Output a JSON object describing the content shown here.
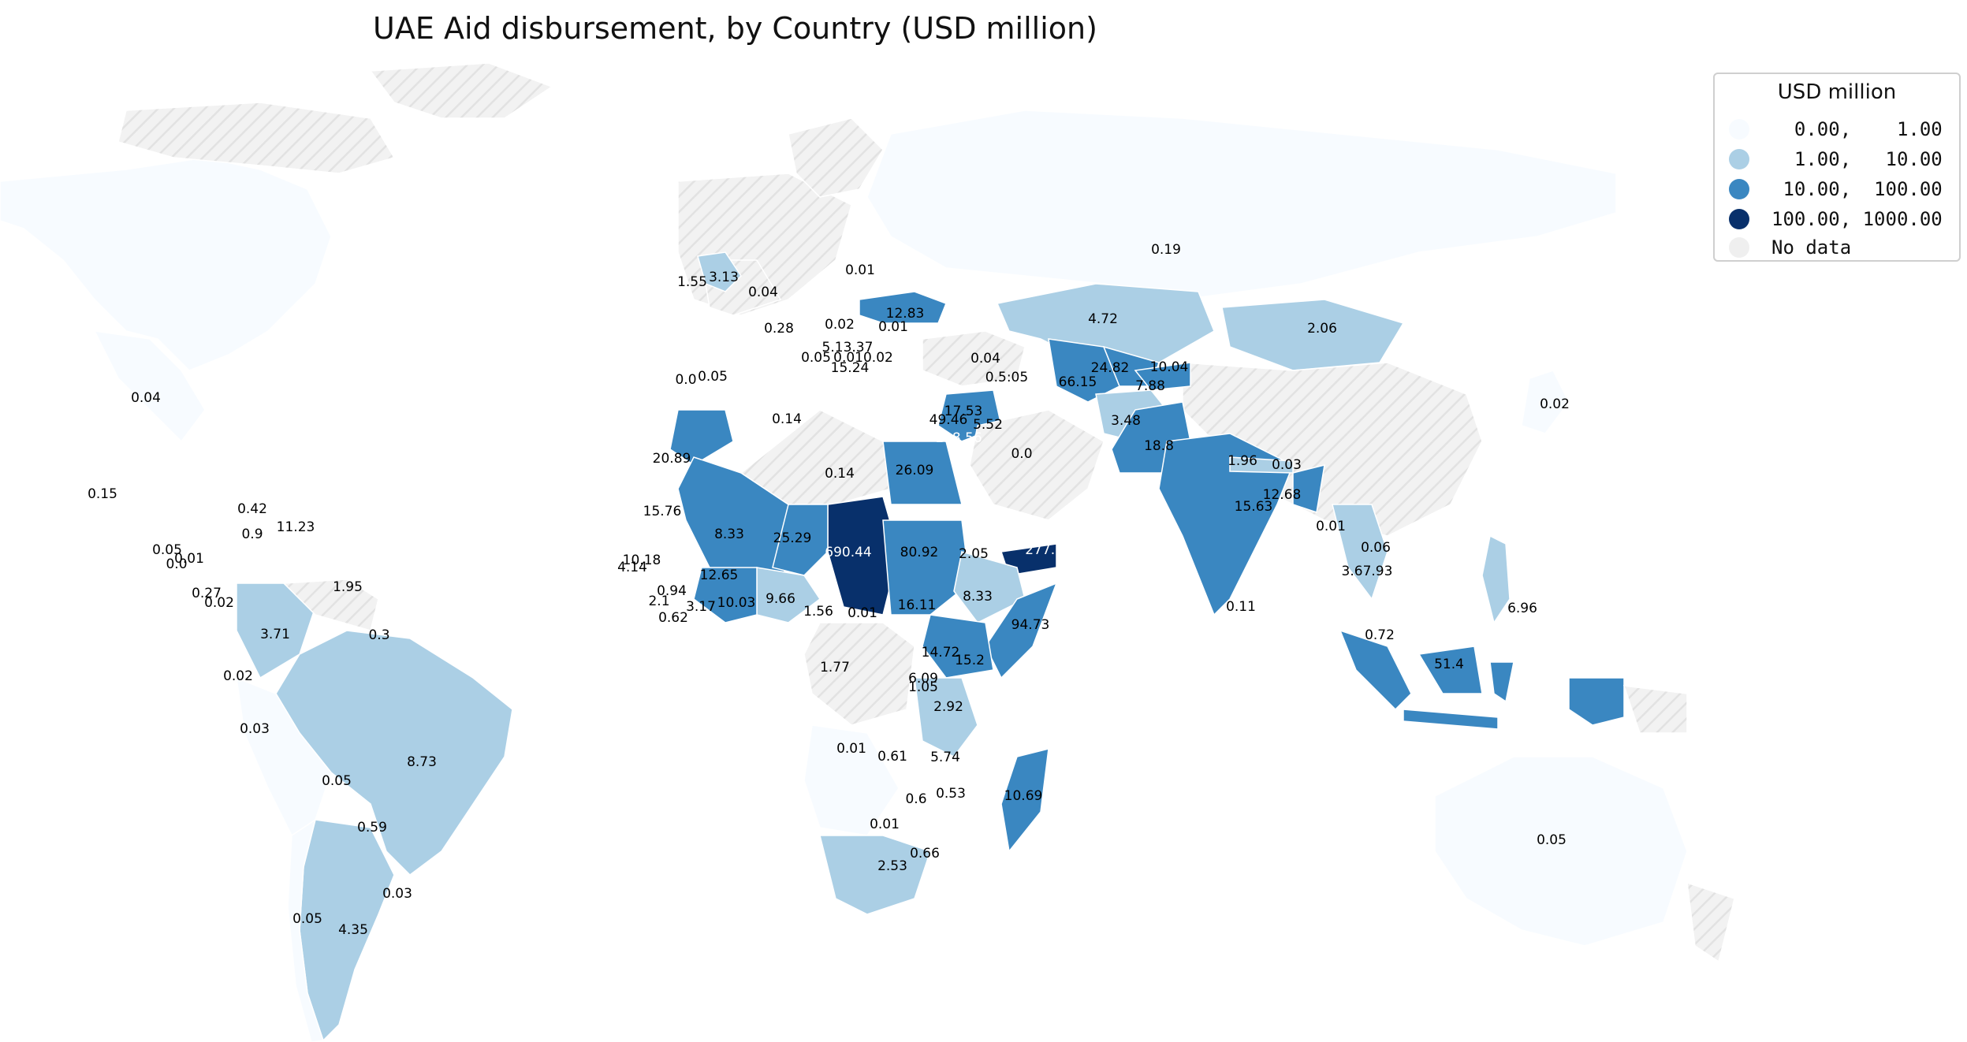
{
  "map": {
    "title": "UAE Aid disbursement, by Country (USD million)",
    "legend": {
      "title": "USD million",
      "items": [
        {
          "label": "  0.00,    1.00",
          "color": "#f7fbff"
        },
        {
          "label": "  1.00,   10.00",
          "color": "#abcfe5"
        },
        {
          "label": " 10.00,  100.00",
          "color": "#3a87c1"
        },
        {
          "label": "100.00, 1000.00",
          "color": "#08306b"
        },
        {
          "label": "No data",
          "color": "#efefef"
        }
      ]
    },
    "colors": {
      "bin0": "#f7fbff",
      "bin1": "#abcfe5",
      "bin2": "#3a87c1",
      "bin3": "#08306b",
      "nodata": "#efefef",
      "hatch": "#e0e0e0"
    },
    "value_labels": [
      {
        "text": "0.04",
        "bin": 0
      },
      {
        "text": "0.15",
        "bin": 0
      },
      {
        "text": "0.42",
        "bin": 0
      },
      {
        "text": "0.9",
        "bin": 0
      },
      {
        "text": "11.23",
        "bin": 2
      },
      {
        "text": "0.05",
        "bin": 0
      },
      {
        "text": "0.01",
        "bin": 0
      },
      {
        "text": "0.0",
        "bin": 0
      },
      {
        "text": "0.27",
        "bin": 0
      },
      {
        "text": "0.02",
        "bin": 0
      },
      {
        "text": "1.95",
        "bin": 1
      },
      {
        "text": "3.71",
        "bin": 1
      },
      {
        "text": "0.3",
        "bin": 0
      },
      {
        "text": "0.02",
        "bin": 0
      },
      {
        "text": "0.03",
        "bin": 0
      },
      {
        "text": "8.73",
        "bin": 1
      },
      {
        "text": "0.05",
        "bin": 0
      },
      {
        "text": "0.59",
        "bin": 0
      },
      {
        "text": "0.03",
        "bin": 0
      },
      {
        "text": "0.05",
        "bin": 0
      },
      {
        "text": "4.35",
        "bin": 1
      },
      {
        "text": "1.55",
        "bin": 1
      },
      {
        "text": "3.13",
        "bin": 1
      },
      {
        "text": "0.04",
        "bin": 0
      },
      {
        "text": "0.01",
        "bin": 0
      },
      {
        "text": "0.28",
        "bin": 0
      },
      {
        "text": "0.02",
        "bin": 0
      },
      {
        "text": "12.83",
        "bin": 2
      },
      {
        "text": "0.01",
        "bin": 0
      },
      {
        "text": "5.13.37",
        "bin": 2
      },
      {
        "text": "0.05",
        "bin": 0
      },
      {
        "text": "0.010.02",
        "bin": 0
      },
      {
        "text": "15.24",
        "bin": 2
      },
      {
        "text": "0.0",
        "bin": 0
      },
      {
        "text": "0.05",
        "bin": 0
      },
      {
        "text": "0.14",
        "bin": 0
      },
      {
        "text": "20.89",
        "bin": 2
      },
      {
        "text": "0.14",
        "bin": 0
      },
      {
        "text": "15.76",
        "bin": 2
      },
      {
        "text": "8.33",
        "bin": 1
      },
      {
        "text": "25.29",
        "bin": 2
      },
      {
        "text": "690.44",
        "bin": 3
      },
      {
        "text": "10.18",
        "bin": 2
      },
      {
        "text": "4.14",
        "bin": 1
      },
      {
        "text": "12.65",
        "bin": 2
      },
      {
        "text": "0.94",
        "bin": 0
      },
      {
        "text": "2.1",
        "bin": 1
      },
      {
        "text": "0.62",
        "bin": 0
      },
      {
        "text": "3.17",
        "bin": 1
      },
      {
        "text": "10.03",
        "bin": 2
      },
      {
        "text": "9.66",
        "bin": 1
      },
      {
        "text": "1.56",
        "bin": 1
      },
      {
        "text": "0.01",
        "bin": 0
      },
      {
        "text": "1.77",
        "bin": 1
      },
      {
        "text": "26.09",
        "bin": 2
      },
      {
        "text": "80.92",
        "bin": 2
      },
      {
        "text": "2.05",
        "bin": 1
      },
      {
        "text": "277.18",
        "bin": 3
      },
      {
        "text": "16.11",
        "bin": 2
      },
      {
        "text": "8.33",
        "bin": 1
      },
      {
        "text": "94.73",
        "bin": 2
      },
      {
        "text": "14.72",
        "bin": 2
      },
      {
        "text": "15.2",
        "bin": 2
      },
      {
        "text": "6.09",
        "bin": 1
      },
      {
        "text": "1.05",
        "bin": 1
      },
      {
        "text": "2.92",
        "bin": 1
      },
      {
        "text": "0.01",
        "bin": 0
      },
      {
        "text": "0.61",
        "bin": 0
      },
      {
        "text": "5.74",
        "bin": 1
      },
      {
        "text": "0.6",
        "bin": 0
      },
      {
        "text": "0.53",
        "bin": 0
      },
      {
        "text": "10.69",
        "bin": 2
      },
      {
        "text": "0.01",
        "bin": 0
      },
      {
        "text": "0.66",
        "bin": 0
      },
      {
        "text": "2.53",
        "bin": 1
      },
      {
        "text": "0.04",
        "bin": 0
      },
      {
        "text": "0.5:05",
        "bin": 0
      },
      {
        "text": "17.53",
        "bin": 2
      },
      {
        "text": "49.46",
        "bin": 2
      },
      {
        "text": "5.52",
        "bin": 1
      },
      {
        "text": "118.56",
        "bin": 3
      },
      {
        "text": "0.0",
        "bin": 0
      },
      {
        "text": "4.72",
        "bin": 1
      },
      {
        "text": "24.82",
        "bin": 2
      },
      {
        "text": "10.04",
        "bin": 2
      },
      {
        "text": "66.15",
        "bin": 2
      },
      {
        "text": "7.88",
        "bin": 1
      },
      {
        "text": "2.06",
        "bin": 1
      },
      {
        "text": "0.19",
        "bin": 0
      },
      {
        "text": "3.48",
        "bin": 1
      },
      {
        "text": "18.8",
        "bin": 2
      },
      {
        "text": "1.96",
        "bin": 1
      },
      {
        "text": "0.03",
        "bin": 0
      },
      {
        "text": "12.68",
        "bin": 2
      },
      {
        "text": "15.63",
        "bin": 2
      },
      {
        "text": "0.11",
        "bin": 0
      },
      {
        "text": "0.01",
        "bin": 0
      },
      {
        "text": "0.06",
        "bin": 0
      },
      {
        "text": "3.67.93",
        "bin": 1
      },
      {
        "text": "0.72",
        "bin": 0
      },
      {
        "text": "6.96",
        "bin": 1
      },
      {
        "text": "51.4",
        "bin": 2
      },
      {
        "text": "0.02",
        "bin": 0
      },
      {
        "text": "0.05",
        "bin": 0
      }
    ]
  }
}
